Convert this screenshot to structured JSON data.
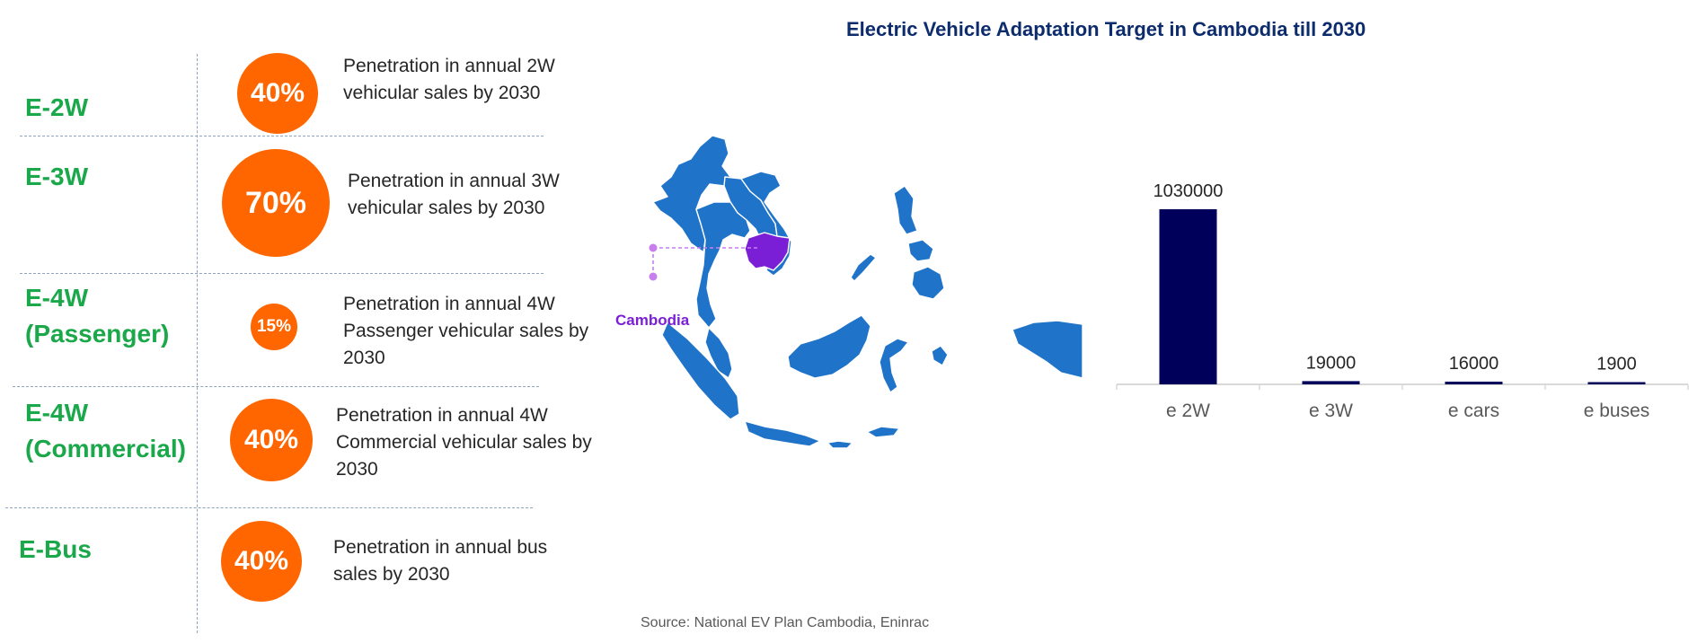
{
  "title": "Electric Vehicle Adaptation Target in Cambodia till 2030",
  "segments": [
    {
      "label": "E-2W",
      "percent": "40%",
      "desc": "Penetration in annual 2W vehicular sales by 2030"
    },
    {
      "label": "E-3W",
      "percent": "70%",
      "desc": "Penetration in annual 3W vehicular sales by 2030"
    },
    {
      "label": "E-4W (Passenger)",
      "percent": "15%",
      "desc": "Penetration in annual 4W Passenger vehicular sales by 2030"
    },
    {
      "label": "E-4W (Commercial)",
      "percent": "40%",
      "desc": "Penetration in annual 4W Commercial vehicular sales by 2030"
    },
    {
      "label": "E-Bus",
      "percent": "40%",
      "desc": "Penetration in annual bus sales by 2030"
    }
  ],
  "map": {
    "highlight_label": "Cambodia"
  },
  "chart_data": {
    "type": "bar",
    "categories": [
      "e 2W",
      "e 3W",
      "e cars",
      "e buses"
    ],
    "values": [
      1030000,
      19000,
      16000,
      1900
    ],
    "data_labels": [
      "1030000",
      "19000",
      "16000",
      "1900"
    ],
    "title": "",
    "xlabel": "",
    "ylabel": "",
    "ylim": [
      0,
      1030000
    ],
    "grid": false,
    "bar_color": "#00005a",
    "axis_color": "#d9d9d9"
  },
  "source": "Source: National EV Plan Cambodia, Eninrac",
  "colors": {
    "segment_green": "#1aa84a",
    "circle_orange": "#ff6600",
    "map_blue": "#1f73c8",
    "cambodia_purple": "#7a1fd6",
    "title_navy": "#0d2c6c"
  }
}
